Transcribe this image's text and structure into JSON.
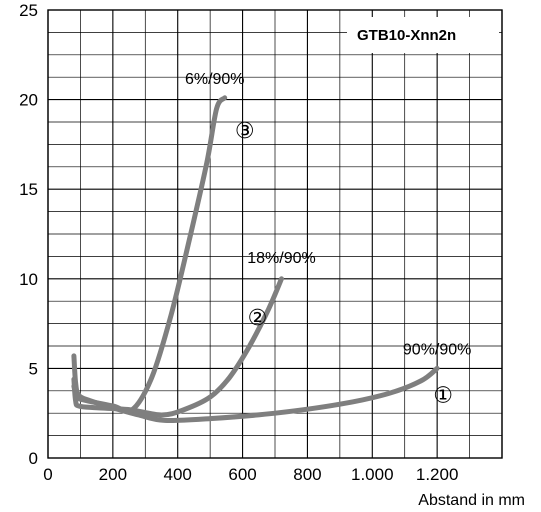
{
  "chart_data": {
    "type": "line",
    "title": "GTB10-Xnn2n",
    "xlabel": "Abstand in mm",
    "ylabel": "",
    "xlim": [
      0,
      1400
    ],
    "ylim": [
      0,
      25
    ],
    "grid": true,
    "x_ticks": [
      {
        "value": 0,
        "label": "0"
      },
      {
        "value": 200,
        "label": "200"
      },
      {
        "value": 400,
        "label": "400"
      },
      {
        "value": 600,
        "label": "600"
      },
      {
        "value": 800,
        "label": "800"
      },
      {
        "value": 1000,
        "label": "1.000"
      },
      {
        "value": 1200,
        "label": "1.200"
      }
    ],
    "y_ticks": [
      {
        "value": 0,
        "label": "0"
      },
      {
        "value": 5,
        "label": "5"
      },
      {
        "value": 10,
        "label": "10"
      },
      {
        "value": 15,
        "label": "15"
      },
      {
        "value": 20,
        "label": "20"
      },
      {
        "value": 25,
        "label": "25"
      }
    ],
    "series": [
      {
        "marker": "①",
        "label": "90%/90%",
        "color": "#7f7f7f",
        "x": [
          80,
          85,
          95,
          130,
          200,
          280,
          360,
          500,
          700,
          900,
          1050,
          1150,
          1200
        ],
        "y": [
          5.7,
          4.2,
          3.5,
          3.2,
          2.8,
          2.4,
          2.1,
          2.2,
          2.5,
          3.0,
          3.6,
          4.3,
          5.0
        ]
      },
      {
        "marker": "②",
        "label": "18%/90%",
        "color": "#7f7f7f",
        "x": [
          80,
          85,
          95,
          150,
          250,
          350,
          420,
          500,
          560,
          620,
          680,
          720
        ],
        "y": [
          4.4,
          3.2,
          2.9,
          2.8,
          2.7,
          2.4,
          2.7,
          3.4,
          4.5,
          6.2,
          8.3,
          10.0
        ]
      },
      {
        "marker": "③",
        "label": "6%/90%",
        "color": "#7f7f7f",
        "x": [
          80,
          90,
          120,
          200,
          260,
          320,
          380,
          440,
          490,
          520,
          545
        ],
        "y": [
          4.0,
          3.4,
          3.2,
          2.9,
          2.7,
          4.5,
          8.0,
          12.5,
          16.5,
          19.5,
          20.1
        ]
      }
    ]
  }
}
